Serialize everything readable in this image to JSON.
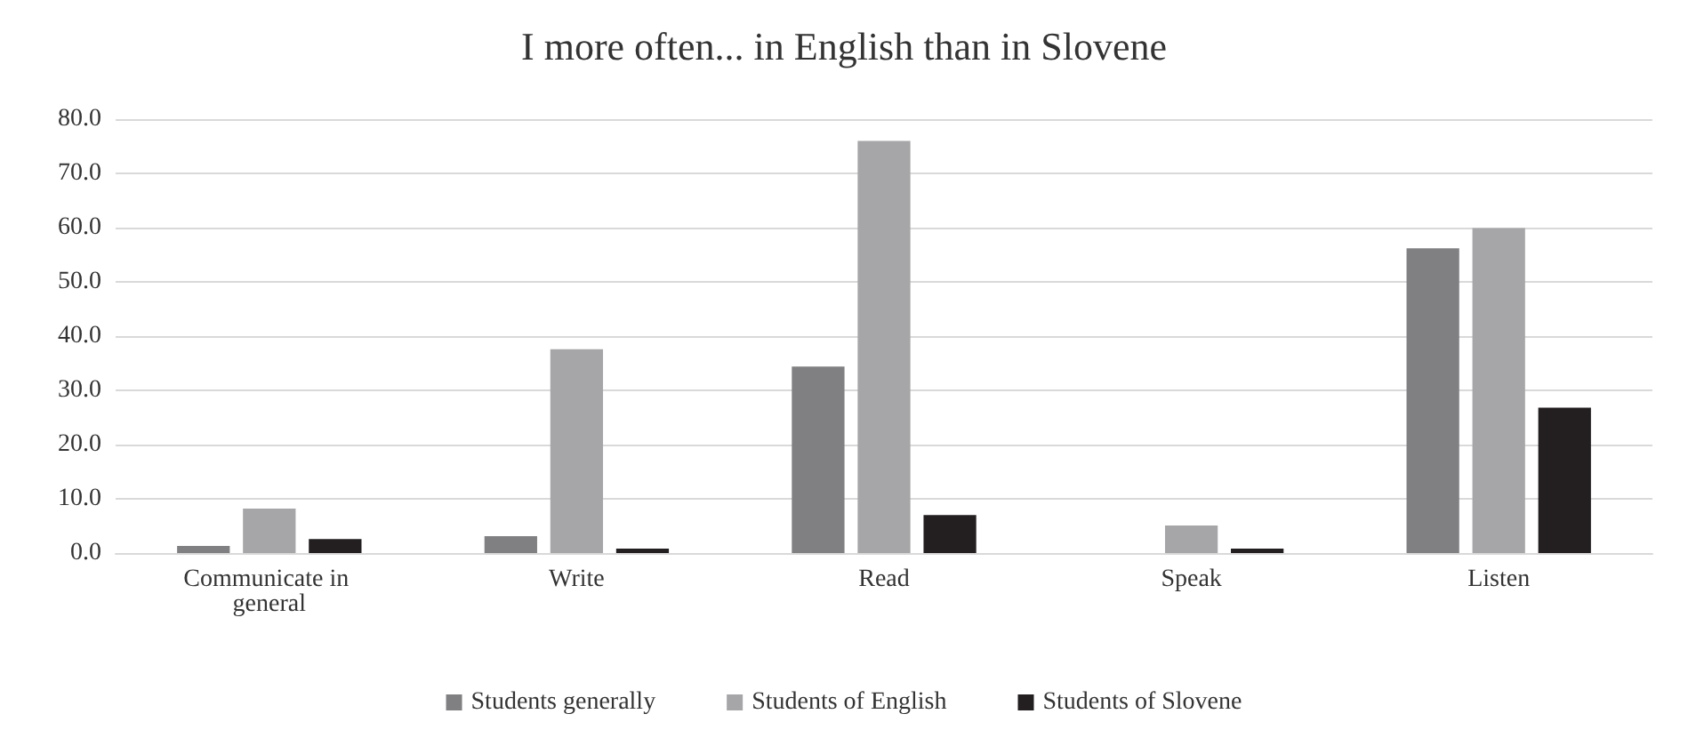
{
  "chart_data": {
    "type": "bar",
    "title": "I more often... in English than in Slovene",
    "categories": [
      "Communicate in general",
      "Write",
      "Read",
      "Speak",
      "Listen"
    ],
    "series": [
      {
        "name": "Students generally",
        "color": "#808083",
        "values": [
          1.3,
          3.1,
          34.4,
          0,
          56.2
        ]
      },
      {
        "name": "Students of English",
        "color": "#a6a6a9",
        "values": [
          8.2,
          37.6,
          76.0,
          5.1,
          59.9
        ]
      },
      {
        "name": "Students of Slovene",
        "color": "#231f20",
        "values": [
          2.6,
          0.8,
          7.0,
          0.8,
          26.8
        ]
      }
    ],
    "ylim": [
      0,
      80
    ],
    "yticks": [
      {
        "value": 0,
        "label": "0.0"
      },
      {
        "value": 10,
        "label": "10.0"
      },
      {
        "value": 20,
        "label": "20.0"
      },
      {
        "value": 30,
        "label": "30.0"
      },
      {
        "value": 40,
        "label": "40.0"
      },
      {
        "value": 50,
        "label": "50.0"
      },
      {
        "value": 60,
        "label": "60.0"
      },
      {
        "value": 70,
        "label": "70.0"
      },
      {
        "value": 80,
        "label": "80.0"
      }
    ],
    "grid": "y",
    "legend": "bottom"
  }
}
